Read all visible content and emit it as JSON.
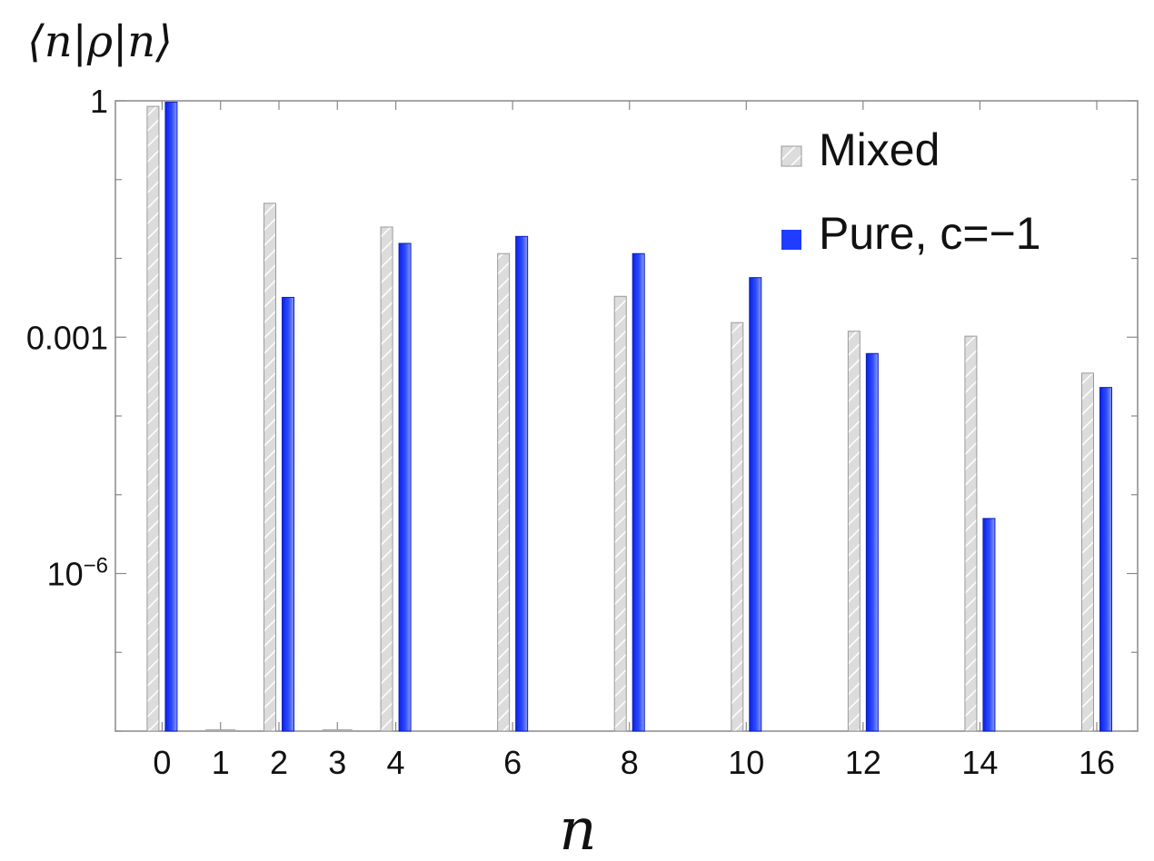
{
  "chart_data": {
    "type": "bar",
    "title": "",
    "ylabel": "⟨n|ρ|n⟩",
    "xlabel": "n",
    "yscale": "log",
    "ylim": [
      1e-08,
      1
    ],
    "xlim": [
      -0.8,
      16.7
    ],
    "x_ticks": [
      "0",
      "1",
      "2",
      "3",
      "4",
      "6",
      "8",
      "10",
      "12",
      "14",
      "16"
    ],
    "y_ticks": [
      {
        "label": "1",
        "value": 1
      },
      {
        "label": "0.001",
        "value": 0.001
      },
      {
        "label": "10",
        "sup": "−6",
        "value": 1e-06
      }
    ],
    "grid": false,
    "legend_position": "top-right",
    "categories": [
      0,
      2,
      4,
      6,
      8,
      10,
      12,
      14,
      16
    ],
    "series": [
      {
        "name": "Mixed",
        "color": "#d9d9d9",
        "pattern": "hatched",
        "values": [
          0.85,
          0.05,
          0.025,
          0.0115,
          0.0033,
          0.00153,
          0.00119,
          0.00103,
          0.00035
        ]
      },
      {
        "name": "Pure, c=−1",
        "color": "#1f3cff",
        "pattern": "solid",
        "values": [
          0.96,
          0.0032,
          0.0155,
          0.019,
          0.0115,
          0.0057,
          0.00062,
          5e-06,
          0.00023
        ]
      }
    ],
    "empty_markers": [
      1,
      3
    ]
  }
}
